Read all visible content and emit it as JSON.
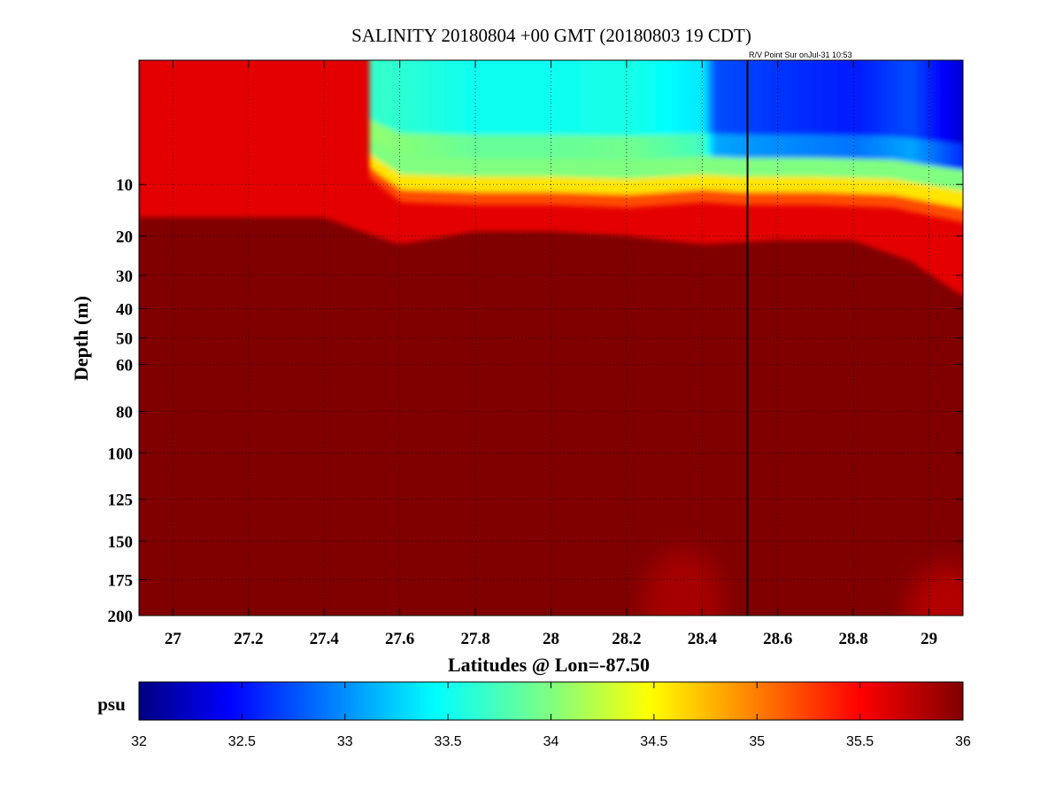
{
  "chart_data": {
    "type": "heatmap",
    "title": "SALINITY 20180804 +00 GMT (20180803 19 CDT)",
    "annotation": "R/V Point Sur onJul-31 10:53",
    "xlabel": "Latitudes @ Lon=-87.50",
    "ylabel": "Depth (m)",
    "xlim": [
      26.91,
      29.09
    ],
    "ylim": [
      0,
      200
    ],
    "y_scale": "sqrt",
    "y_reversed": true,
    "grid": true,
    "x_ticks": [
      "27",
      "27.2",
      "27.4",
      "27.6",
      "27.8",
      "28",
      "28.2",
      "28.4",
      "28.6",
      "28.8",
      "29"
    ],
    "y_ticks": [
      "10",
      "20",
      "30",
      "40",
      "50",
      "60",
      "80",
      "100",
      "125",
      "150",
      "175",
      "200"
    ],
    "ship_track_latitude": 28.52,
    "fresh_layer_start_latitude": 27.52,
    "fresh_layer_bottom_depth": [
      [
        27.5,
        0
      ],
      [
        27.52,
        9
      ],
      [
        27.6,
        13
      ],
      [
        27.8,
        13.5
      ],
      [
        28.0,
        13.5
      ],
      [
        28.2,
        14
      ],
      [
        28.4,
        13
      ],
      [
        28.5,
        13.5
      ],
      [
        28.7,
        13.5
      ],
      [
        28.9,
        14
      ],
      [
        29.09,
        17
      ]
    ],
    "red_layer_bottom_depth": [
      [
        26.91,
        16
      ],
      [
        27.4,
        16
      ],
      [
        27.6,
        22
      ],
      [
        27.8,
        19
      ],
      [
        28.0,
        19
      ],
      [
        28.2,
        20
      ],
      [
        28.4,
        22
      ],
      [
        28.6,
        21
      ],
      [
        28.8,
        21
      ],
      [
        28.95,
        26
      ],
      [
        29.09,
        36
      ]
    ],
    "fresh_core_values_psu": [
      [
        27.55,
        33.7
      ],
      [
        27.8,
        33.55
      ],
      [
        28.0,
        33.55
      ],
      [
        28.2,
        33.6
      ],
      [
        28.4,
        33.4
      ],
      [
        28.43,
        32.8
      ],
      [
        28.6,
        32.7
      ],
      [
        28.8,
        32.6
      ],
      [
        28.95,
        32.8
      ],
      [
        29.09,
        32.3
      ]
    ],
    "surface_value_psu": 35.6,
    "deep_value_psu": 36.0,
    "deep_reddish_patches": [
      {
        "lat": 28.35,
        "depth_from": 150,
        "depth_to": 200,
        "value_psu": 35.85
      },
      {
        "lat": 29.05,
        "depth_from": 160,
        "depth_to": 200,
        "value_psu": 35.8
      }
    ],
    "colorbar": {
      "label": "psu",
      "min": 32,
      "max": 36,
      "colormap": "jet",
      "ticks": [
        "32",
        "32.5",
        "33",
        "33.5",
        "34",
        "34.5",
        "35",
        "35.5",
        "36"
      ]
    }
  }
}
